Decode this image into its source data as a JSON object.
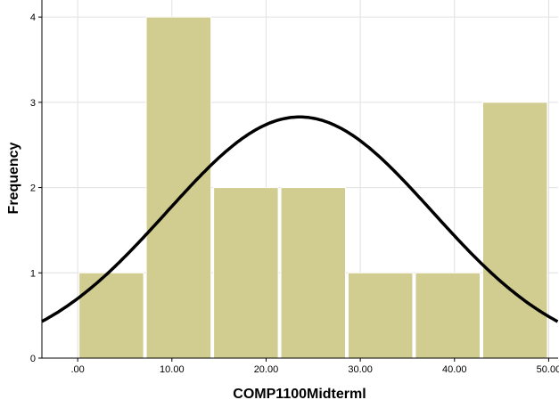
{
  "chart_data": {
    "type": "bar",
    "subtype": "histogram",
    "title": "",
    "xlabel": "COMP1100Midterml",
    "ylabel": "Frequency",
    "bins": [
      {
        "start": 0,
        "end": 7.14,
        "count": 1
      },
      {
        "start": 7.14,
        "end": 14.29,
        "count": 4
      },
      {
        "start": 14.29,
        "end": 21.43,
        "count": 2
      },
      {
        "start": 21.43,
        "end": 28.57,
        "count": 2
      },
      {
        "start": 28.57,
        "end": 35.71,
        "count": 1
      },
      {
        "start": 35.71,
        "end": 42.86,
        "count": 1
      },
      {
        "start": 42.86,
        "end": 50.0,
        "count": 3
      }
    ],
    "x_ticks": [
      0,
      10,
      20,
      30,
      40,
      50
    ],
    "x_tick_labels": [
      ".00",
      "10.00",
      "20.00",
      "30.00",
      "40.00",
      "50.00"
    ],
    "y_ticks": [
      0,
      1,
      2,
      3,
      4
    ],
    "y_tick_labels": [
      "0",
      "1",
      "2",
      "3",
      "4"
    ],
    "xlim": [
      -3.8,
      51.0
    ],
    "ylim": [
      0,
      4.2
    ],
    "grid": true,
    "normal_curve": {
      "mean": 23.57,
      "std": 14.1,
      "n": 14,
      "bin_width": 7.14
    },
    "colors": {
      "bar_fill": "#d1cc8f",
      "bar_edge": "#ffffff",
      "curve": "#000000",
      "grid": "#e0e0e0"
    }
  }
}
